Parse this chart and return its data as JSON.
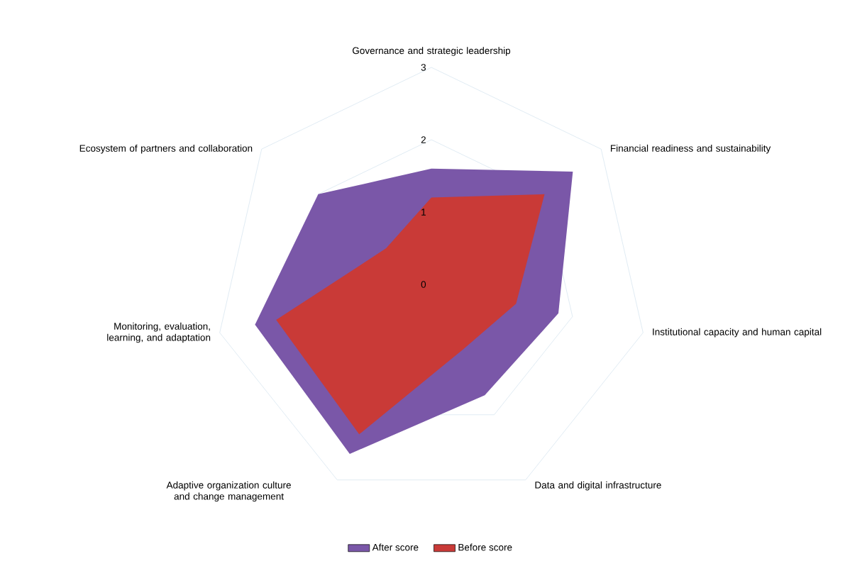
{
  "chart_data": {
    "type": "radar",
    "categories": [
      "Governance and strategic leadership",
      "Financial readiness and sustainability",
      "Institutional capacity and human capital",
      "Data and digital infrastructure",
      "Adaptive organization culture and change management",
      "Monitoring, evaluation, learning, and adaptation",
      "Ecosystem of partners and collaboration"
    ],
    "series": [
      {
        "name": "After score",
        "color": "#7a57a8",
        "values": [
          1.6,
          2.5,
          1.8,
          1.7,
          2.6,
          2.5,
          2.0
        ]
      },
      {
        "name": "Before score",
        "color": "#c93a37",
        "values": [
          1.2,
          2.0,
          1.2,
          1.0,
          2.3,
          2.2,
          0.8
        ]
      }
    ],
    "ylim": [
      0,
      3
    ],
    "yticks": [
      0,
      1,
      2,
      3
    ],
    "grid": true,
    "legend": "bottom"
  }
}
